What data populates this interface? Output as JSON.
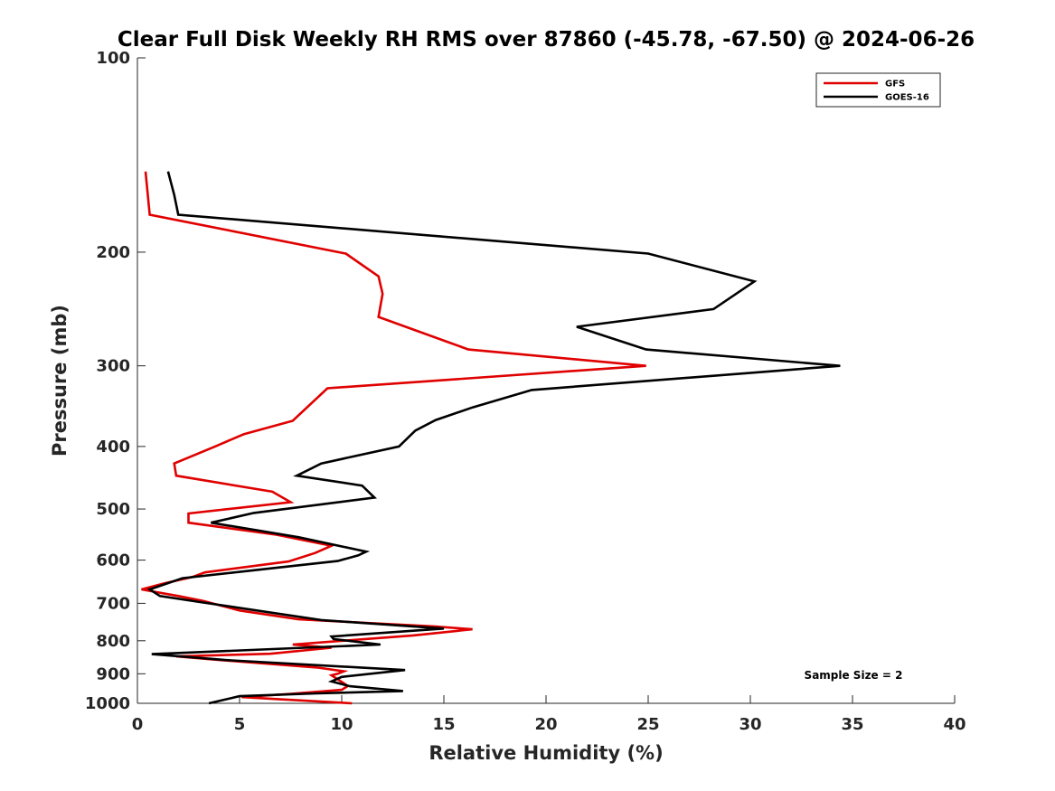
{
  "chart_data": {
    "type": "line",
    "title": "Clear Full Disk Weekly RH RMS over 87860 (-45.78, -67.50) @ 2024-06-26",
    "xlabel": "Relative Humidity (%)",
    "ylabel": "Pressure (mb)",
    "xlim": [
      0,
      40
    ],
    "ylim": [
      100,
      1000
    ],
    "yscale": "log",
    "y_reversed": true,
    "xticks": [
      0,
      5,
      10,
      15,
      20,
      25,
      30,
      35,
      40
    ],
    "yticks": [
      100,
      200,
      300,
      400,
      500,
      600,
      700,
      800,
      900,
      1000
    ],
    "legend_position": "top-right",
    "grid": false,
    "annotation": "Sample Size = 2",
    "series": [
      {
        "name": "GFS",
        "color": "#e00000",
        "points": [
          [
            0.4,
            150
          ],
          [
            0.6,
            175
          ],
          [
            10.2,
            201
          ],
          [
            11.8,
            218
          ],
          [
            12.0,
            232
          ],
          [
            11.8,
            252
          ],
          [
            16.2,
            283
          ],
          [
            24.9,
            300
          ],
          [
            9.3,
            325
          ],
          [
            7.6,
            365
          ],
          [
            5.2,
            383
          ],
          [
            3.8,
            400
          ],
          [
            1.8,
            425
          ],
          [
            1.9,
            444
          ],
          [
            6.6,
            470
          ],
          [
            7.5,
            488
          ],
          [
            2.5,
            508
          ],
          [
            2.5,
            525
          ],
          [
            6.8,
            548
          ],
          [
            9.5,
            570
          ],
          [
            8.7,
            585
          ],
          [
            7.4,
            603
          ],
          [
            3.3,
            627
          ],
          [
            2.7,
            637
          ],
          [
            1.3,
            652
          ],
          [
            0.2,
            666
          ],
          [
            2.0,
            682
          ],
          [
            3.2,
            694
          ],
          [
            5.0,
            718
          ],
          [
            7.9,
            741
          ],
          [
            14.5,
            760
          ],
          [
            16.4,
            768
          ],
          [
            13.5,
            785
          ],
          [
            7.6,
            811
          ],
          [
            9.5,
            820
          ],
          [
            6.5,
            838
          ],
          [
            1.9,
            846
          ],
          [
            4.0,
            857
          ],
          [
            8.8,
            880
          ],
          [
            10.1,
            892
          ],
          [
            9.8,
            900
          ],
          [
            9.5,
            905
          ],
          [
            10.3,
            940
          ],
          [
            10.0,
            953
          ],
          [
            9.1,
            958
          ],
          [
            7.5,
            967
          ],
          [
            5.1,
            978
          ],
          [
            6.8,
            985
          ],
          [
            10.5,
            1000
          ]
        ]
      },
      {
        "name": "GOES-16",
        "color": "#000000",
        "points": [
          [
            1.5,
            150
          ],
          [
            1.8,
            163
          ],
          [
            2.0,
            175
          ],
          [
            25.0,
            201
          ],
          [
            30.2,
            222
          ],
          [
            28.2,
            245
          ],
          [
            21.5,
            261
          ],
          [
            24.9,
            283
          ],
          [
            34.4,
            300
          ],
          [
            19.3,
            327
          ],
          [
            16.4,
            348
          ],
          [
            14.6,
            364
          ],
          [
            13.6,
            378
          ],
          [
            12.8,
            400
          ],
          [
            9.0,
            425
          ],
          [
            7.8,
            444
          ],
          [
            11.0,
            460
          ],
          [
            11.6,
            480
          ],
          [
            5.7,
            507
          ],
          [
            3.6,
            525
          ],
          [
            7.9,
            553
          ],
          [
            11.2,
            582
          ],
          [
            10.8,
            590
          ],
          [
            9.8,
            602
          ],
          [
            6.1,
            620
          ],
          [
            2.2,
            640
          ],
          [
            0.6,
            666
          ],
          [
            1.1,
            682
          ],
          [
            3.1,
            697
          ],
          [
            9.0,
            743
          ],
          [
            15.0,
            766
          ],
          [
            9.5,
            788
          ],
          [
            9.6,
            795
          ],
          [
            11.9,
            811
          ],
          [
            0.7,
            839
          ],
          [
            4.3,
            857
          ],
          [
            13.1,
            888
          ],
          [
            10.0,
            910
          ],
          [
            9.5,
            925
          ],
          [
            10.4,
            941
          ],
          [
            13.0,
            957
          ],
          [
            8.8,
            965
          ],
          [
            5.0,
            975
          ],
          [
            3.5,
            1000
          ]
        ]
      }
    ]
  }
}
